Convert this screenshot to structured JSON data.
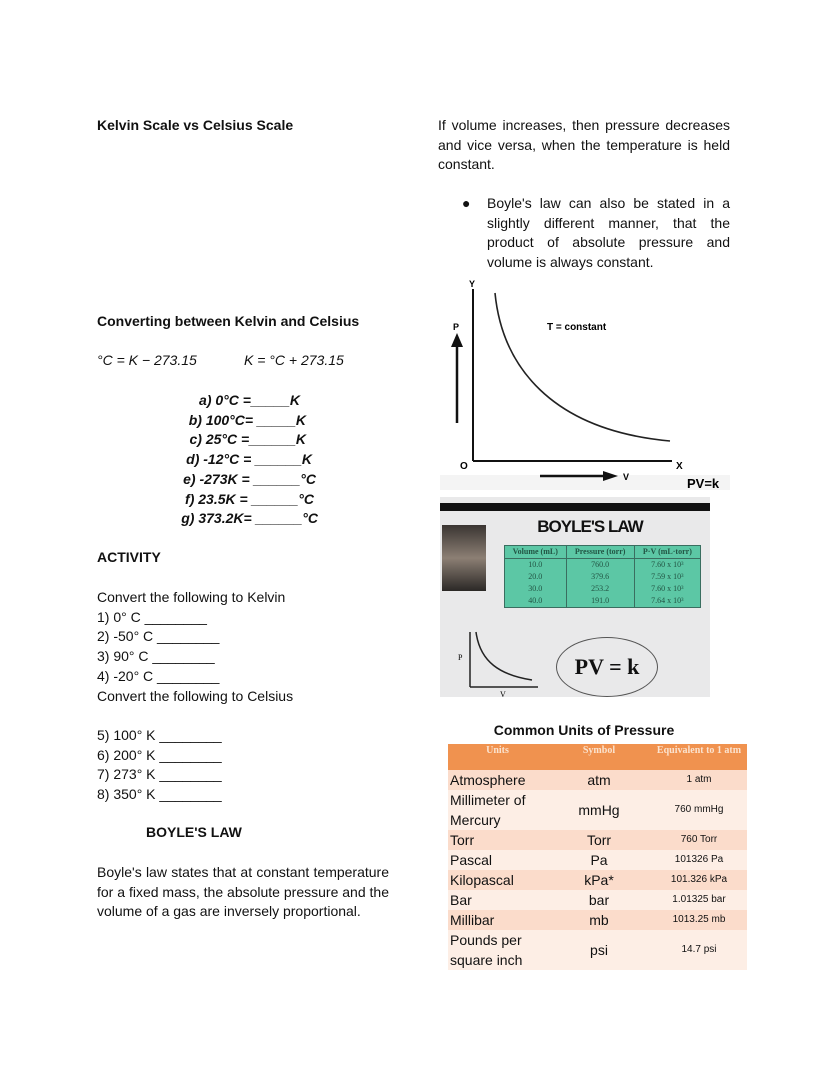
{
  "left": {
    "title": "Kelvin Scale vs Celsius Scale",
    "converting_heading": "Converting between Kelvin and Celsius",
    "formula_c": "°C = K − 273.15",
    "formula_k": "K = °C + 273.15",
    "exercises": [
      "a) 0°C =_____K",
      "b) 100°C= _____K",
      "c) 25°C =______K",
      "d) -12°C = ______K",
      "e) -273K = ______°C",
      "f) 23.5K = ______°C",
      "g) 373.2K= ______°C"
    ],
    "activity_heading": "ACTIVITY",
    "to_kelvin_label": "Convert the following to Kelvin",
    "to_kelvin": [
      "1) 0° C ________",
      "2) -50° C ________",
      "3) 90° C ________",
      "4) -20° C ________"
    ],
    "to_celsius_label": "Convert the following to Celsius",
    "to_celsius": [
      "5) 100° K ________",
      "6) 200° K ________",
      "7) 273° K ________",
      "8) 350° K ________"
    ],
    "boyle_heading": "BOYLE'S LAW",
    "boyle_text": "Boyle's law states that at constant temperature for a fixed mass, the absolute pressure and the volume of a gas are inversely proportional."
  },
  "right": {
    "para": "If volume increases, then pressure decreases and vice versa, when the temperature is held constant.",
    "bullet": "Boyle's law can also be stated in a slightly different manner, that the product of absolute pressure and volume is always constant.",
    "graph": {
      "y_axis": "Y",
      "x_axis": "X",
      "origin": "O",
      "p_label": "P",
      "v_label": "V",
      "annotation": "T = constant",
      "equation": "PV=k"
    },
    "photo": {
      "title": "BOYLE'S LAW",
      "headers": [
        "Volume (mL)",
        "Pressure (torr)",
        "P·V (mL·torr)"
      ],
      "rows": [
        [
          "10.0",
          "760.0",
          "7.60 x 10³"
        ],
        [
          "20.0",
          "379.6",
          "7.59 x 10³"
        ],
        [
          "30.0",
          "253.2",
          "7.60 x 10³"
        ],
        [
          "40.0",
          "191.0",
          "7.64 x 10³"
        ]
      ],
      "p_label": "P",
      "v_label": "V",
      "equation": "PV = k"
    },
    "units_title": "Common Units of Pressure",
    "units_headers": [
      "Units",
      "Symbol",
      "Equivalent to 1 atm"
    ],
    "units_rows": [
      [
        "Atmosphere",
        "atm",
        "1 atm"
      ],
      [
        "Millimeter of Mercury",
        "mmHg",
        "760 mmHg"
      ],
      [
        "Torr",
        "Torr",
        "760 Torr"
      ],
      [
        "Pascal",
        "Pa",
        "101326 Pa"
      ],
      [
        "Kilopascal",
        "kPa*",
        "101.326 kPa"
      ],
      [
        "Bar",
        "bar",
        "1.01325 bar"
      ],
      [
        "Millibar",
        "mb",
        "1013.25 mb"
      ],
      [
        "Pounds per square inch",
        "psi",
        "14.7 psi"
      ]
    ]
  }
}
